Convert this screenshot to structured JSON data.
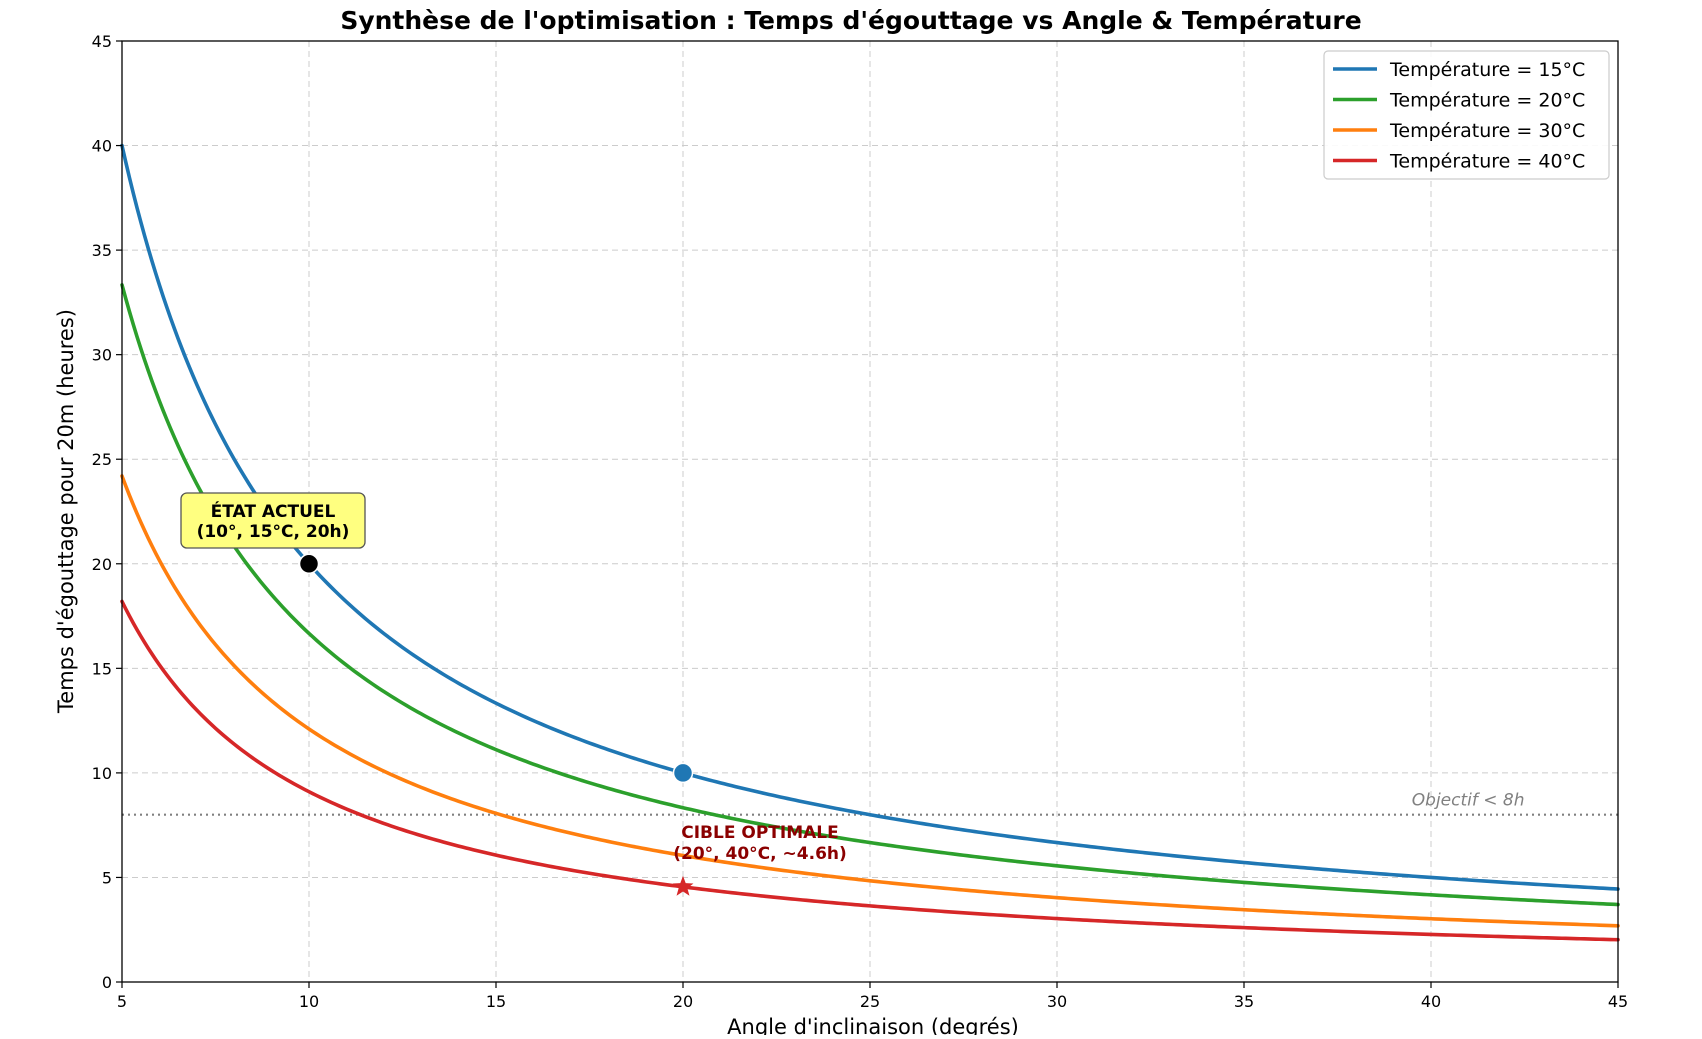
{
  "chart_data": {
    "type": "line",
    "title": "Synthèse de l'optimisation : Temps d'égouttage vs Angle & Température",
    "xlabel": "Angle d'inclinaison (degrés)",
    "ylabel": "Temps d'égouttage pour 20m (heures)",
    "xlim": [
      5,
      45
    ],
    "ylim": [
      0,
      45
    ],
    "xticks": [
      5,
      10,
      15,
      20,
      25,
      30,
      35,
      40,
      45
    ],
    "yticks": [
      0,
      5,
      10,
      15,
      20,
      25,
      30,
      35,
      40,
      45
    ],
    "grid": true,
    "legend_position": "top-right",
    "series": [
      {
        "name": "Température = 15°C",
        "color": "#1f77b4",
        "coefficient": 200
      },
      {
        "name": "Température = 20°C",
        "color": "#2ca02c",
        "coefficient": 166.7
      },
      {
        "name": "Température = 30°C",
        "color": "#ff7f0e",
        "coefficient": 121
      },
      {
        "name": "Température = 40°C",
        "color": "#d62728",
        "coefficient": 91
      }
    ],
    "curve_model": "y = coefficient / x",
    "threshold": {
      "y": 8,
      "label": "Objectif < 8h",
      "color": "#808080"
    },
    "points": [
      {
        "x": 10,
        "y": 20,
        "color": "#000000",
        "marker": "circle"
      },
      {
        "x": 20,
        "y": 10,
        "color": "#1f77b4",
        "marker": "circle"
      },
      {
        "x": 20,
        "y": 4.55,
        "color": "#d62728",
        "marker": "star"
      }
    ],
    "annotations": [
      {
        "line1": "ÉTAT ACTUEL",
        "line2": "(10°, 15°C, 20h)",
        "box_color": "#ffff80",
        "text_color": "#000000"
      },
      {
        "line1": "CIBLE OPTIMALE",
        "line2": "(20°, 40°C, ~4.6h)",
        "text_color": "#8b0000"
      }
    ]
  }
}
